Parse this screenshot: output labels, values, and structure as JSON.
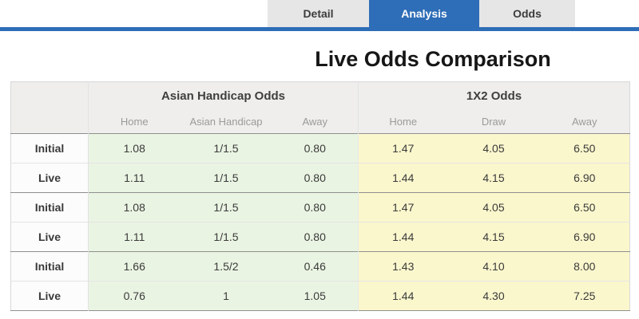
{
  "tabs": [
    {
      "label": "Detail",
      "active": false
    },
    {
      "label": "Analysis",
      "active": true
    },
    {
      "label": "Odds",
      "active": false
    }
  ],
  "title": "Live Odds Comparison",
  "table": {
    "groups": [
      {
        "label": "Asian Handicap Odds",
        "columns": [
          "Home",
          "Asian Handicap",
          "Away"
        ]
      },
      {
        "label": "1X2 Odds",
        "columns": [
          "Home",
          "Draw",
          "Away"
        ]
      }
    ],
    "rows": [
      {
        "label": "Initial",
        "ah": [
          "1.08",
          "1/1.5",
          "0.80"
        ],
        "x12": [
          "1.47",
          "4.05",
          "6.50"
        ]
      },
      {
        "label": "Live",
        "ah": [
          "1.11",
          "1/1.5",
          "0.80"
        ],
        "x12": [
          "1.44",
          "4.15",
          "6.90"
        ]
      },
      {
        "label": "Initial",
        "ah": [
          "1.08",
          "1/1.5",
          "0.80"
        ],
        "x12": [
          "1.47",
          "4.05",
          "6.50"
        ]
      },
      {
        "label": "Live",
        "ah": [
          "1.11",
          "1/1.5",
          "0.80"
        ],
        "x12": [
          "1.44",
          "4.15",
          "6.90"
        ]
      },
      {
        "label": "Initial",
        "ah": [
          "1.66",
          "1.5/2",
          "0.46"
        ],
        "x12": [
          "1.43",
          "4.10",
          "8.00"
        ]
      },
      {
        "label": "Live",
        "ah": [
          "0.76",
          "1",
          "1.05"
        ],
        "x12": [
          "1.44",
          "4.30",
          "7.25"
        ]
      }
    ]
  },
  "colors": {
    "accent": "#2e6db7",
    "tab_bg": "#e6e6e6",
    "header_bg": "#efeeec",
    "green": "#eaf4e3",
    "yellow": "#fbf7cd"
  }
}
